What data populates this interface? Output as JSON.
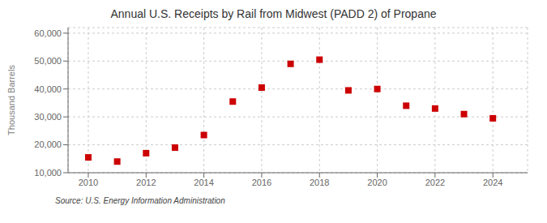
{
  "chart_data": {
    "type": "scatter",
    "title": "Annual U.S. Receipts by Rail from Midwest (PADD 2) of Propane",
    "ylabel": "Thousand Barrels",
    "source": "Source: U.S. Energy Information Administration",
    "x": [
      2010,
      2011,
      2012,
      2013,
      2014,
      2015,
      2016,
      2017,
      2018,
      2019,
      2020,
      2021,
      2022,
      2023,
      2024
    ],
    "values": [
      15500,
      14000,
      17000,
      19000,
      23500,
      35500,
      40500,
      49000,
      50500,
      39500,
      40000,
      34000,
      33000,
      31000,
      29500
    ],
    "color": "#cc0000",
    "marker": "square",
    "xlim": [
      2009.3,
      2025.2
    ],
    "ylim": [
      10000,
      62000
    ],
    "xticks": [
      2010,
      2012,
      2014,
      2016,
      2018,
      2020,
      2022,
      2024
    ],
    "yticks": [
      {
        "value": 10000,
        "label": "10,000"
      },
      {
        "value": 20000,
        "label": "20,000"
      },
      {
        "value": 30000,
        "label": "30,000"
      },
      {
        "value": 40000,
        "label": "40,000"
      },
      {
        "value": 50000,
        "label": "50,000"
      },
      {
        "value": 60000,
        "label": "60,000"
      }
    ],
    "grid": true
  }
}
